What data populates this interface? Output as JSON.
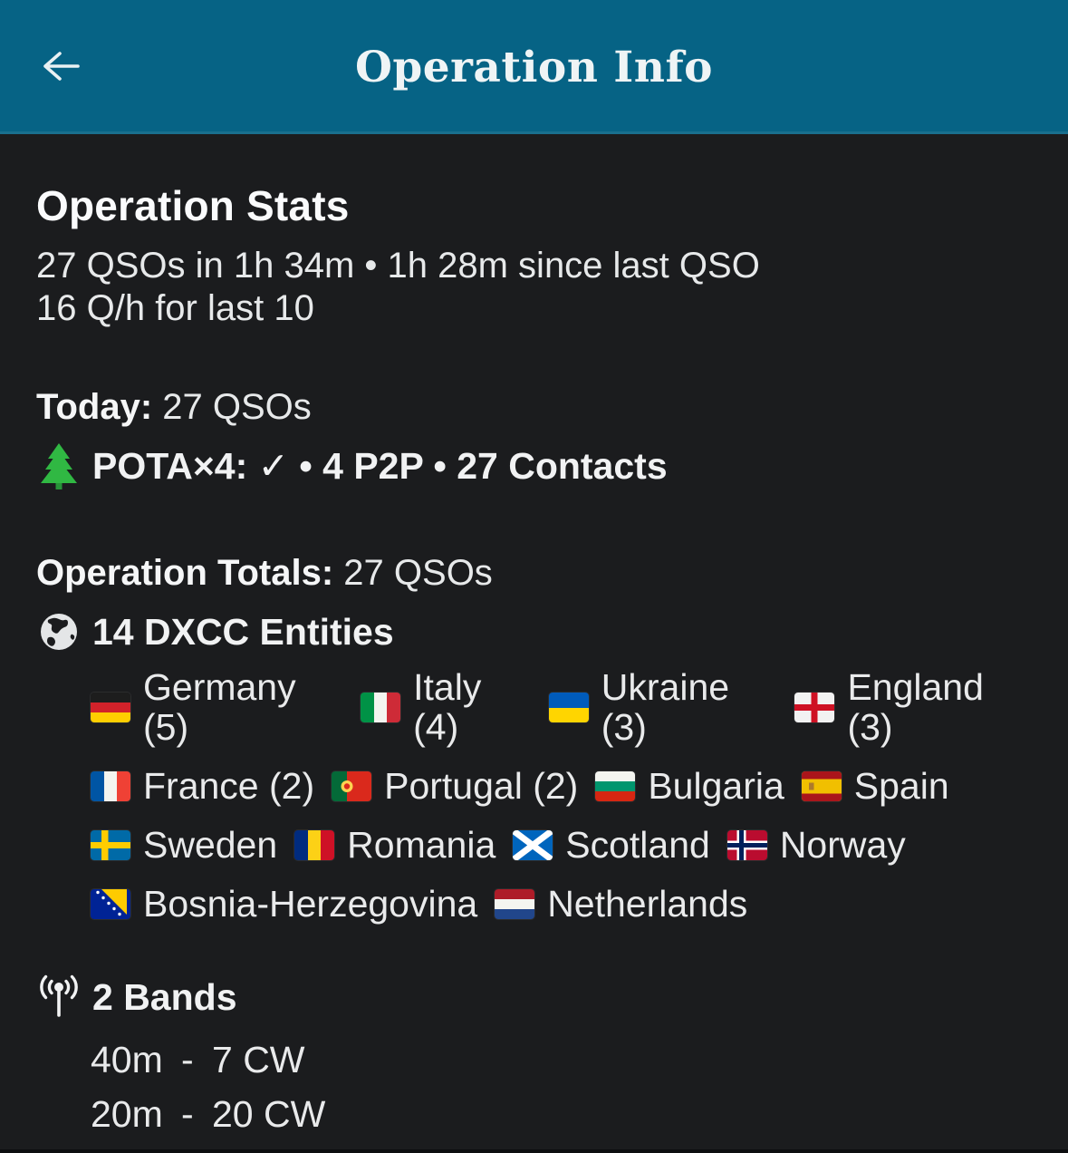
{
  "colors": {
    "header_bg": "#066385",
    "page_bg": "#1b1c1e",
    "body_text": "#e7e9ea",
    "heading_text": "#fafbfc",
    "tree_green": "#30b843"
  },
  "header": {
    "title": "Operation Info",
    "back_icon": "arrow-left"
  },
  "operation_stats": {
    "heading": "Operation Stats",
    "summary_line": "27 QSOs in 1h 34m • 1h 28m since last QSO",
    "rate_line": "16 Q/h for last 10"
  },
  "today": {
    "label": "Today:",
    "qso_count": "27 QSOs",
    "tree_icon": "evergreen-tree",
    "pota_status": "POTA×4: ✓ • 4 P2P • 27 Contacts"
  },
  "operation_totals": {
    "label": "Operation Totals:",
    "qso_count": "27 QSOs",
    "dxcc": {
      "globe_icon": "globe",
      "heading": "14 DXCC Entities",
      "rows": [
        [
          {
            "flag": "de",
            "label": "Germany (5)"
          },
          {
            "flag": "it",
            "label": "Italy (4)"
          },
          {
            "flag": "ua",
            "label": "Ukraine (3)"
          },
          {
            "flag": "eng",
            "label": "England (3)"
          }
        ],
        [
          {
            "flag": "fr",
            "label": "France (2)"
          },
          {
            "flag": "pt",
            "label": "Portugal (2)"
          },
          {
            "flag": "bg",
            "label": "Bulgaria"
          },
          {
            "flag": "es",
            "label": "Spain"
          }
        ],
        [
          {
            "flag": "se",
            "label": "Sweden"
          },
          {
            "flag": "ro",
            "label": "Romania"
          },
          {
            "flag": "sct",
            "label": "Scotland"
          },
          {
            "flag": "no",
            "label": "Norway"
          }
        ],
        [
          {
            "flag": "ba",
            "label": "Bosnia-Herzegovina"
          },
          {
            "flag": "nl",
            "label": "Netherlands"
          }
        ]
      ]
    },
    "bands": {
      "antenna_icon": "antenna",
      "heading": "2 Bands",
      "items": [
        {
          "band": "40m",
          "dash": "-",
          "count": "7 CW"
        },
        {
          "band": "20m",
          "dash": "-",
          "count": "20 CW"
        }
      ]
    }
  }
}
